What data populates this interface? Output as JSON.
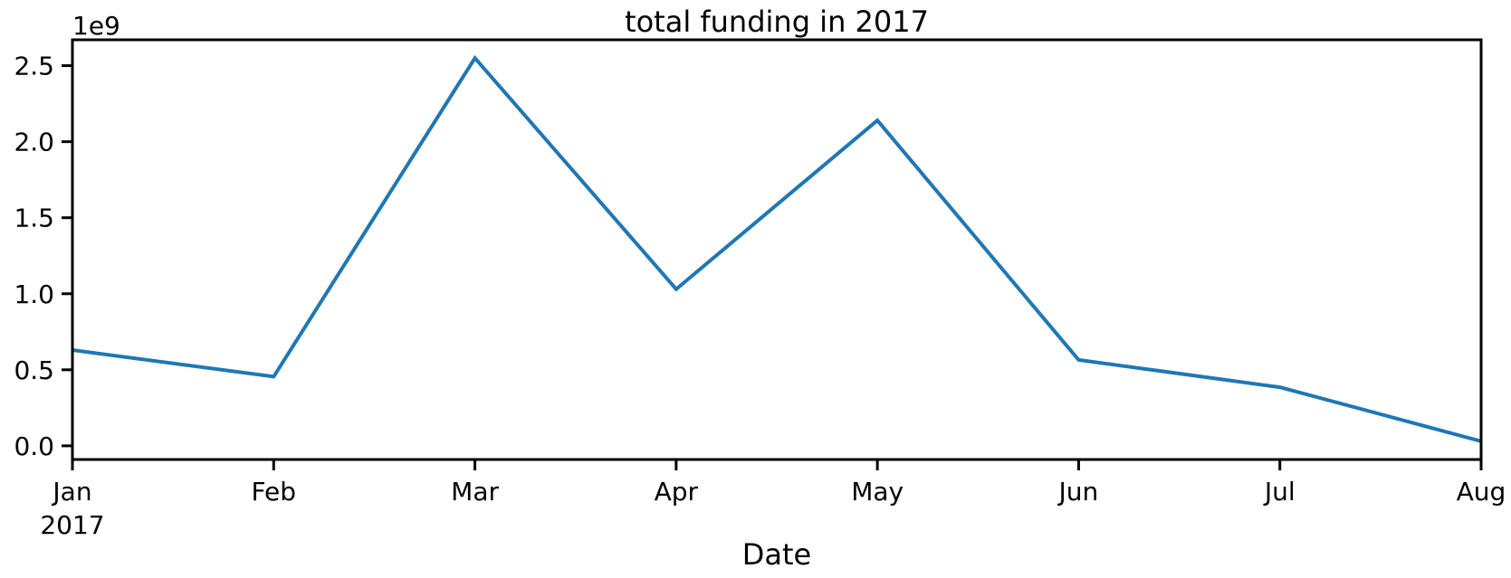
{
  "chart_data": {
    "type": "line",
    "title": "total funding in 2017",
    "xlabel": "Date",
    "ylabel": "",
    "y_offset_label": "1e9",
    "x": [
      "2017-01",
      "2017-02",
      "2017-03",
      "2017-04",
      "2017-05",
      "2017-06",
      "2017-07",
      "2017-08"
    ],
    "x_tick_labels": [
      "Jan",
      "Feb",
      "Mar",
      "Apr",
      "May",
      "Jun",
      "Jul",
      "Aug"
    ],
    "x_tick_year_label": "2017",
    "y_tick_values": [
      0.0,
      0.5,
      1.0,
      1.5,
      2.0,
      2.5
    ],
    "y_tick_labels": [
      "0.0",
      "0.5",
      "1.0",
      "1.5",
      "2.0",
      "2.5"
    ],
    "ylim": [
      -0.09,
      2.67
    ],
    "y_scale_note": "values in units of 1e9",
    "series": [
      {
        "values": [
          0.63,
          0.455,
          2.55,
          1.03,
          2.14,
          0.565,
          0.385,
          0.03
        ],
        "color": "#1f77b4"
      }
    ],
    "grid": false,
    "legend": "none"
  }
}
